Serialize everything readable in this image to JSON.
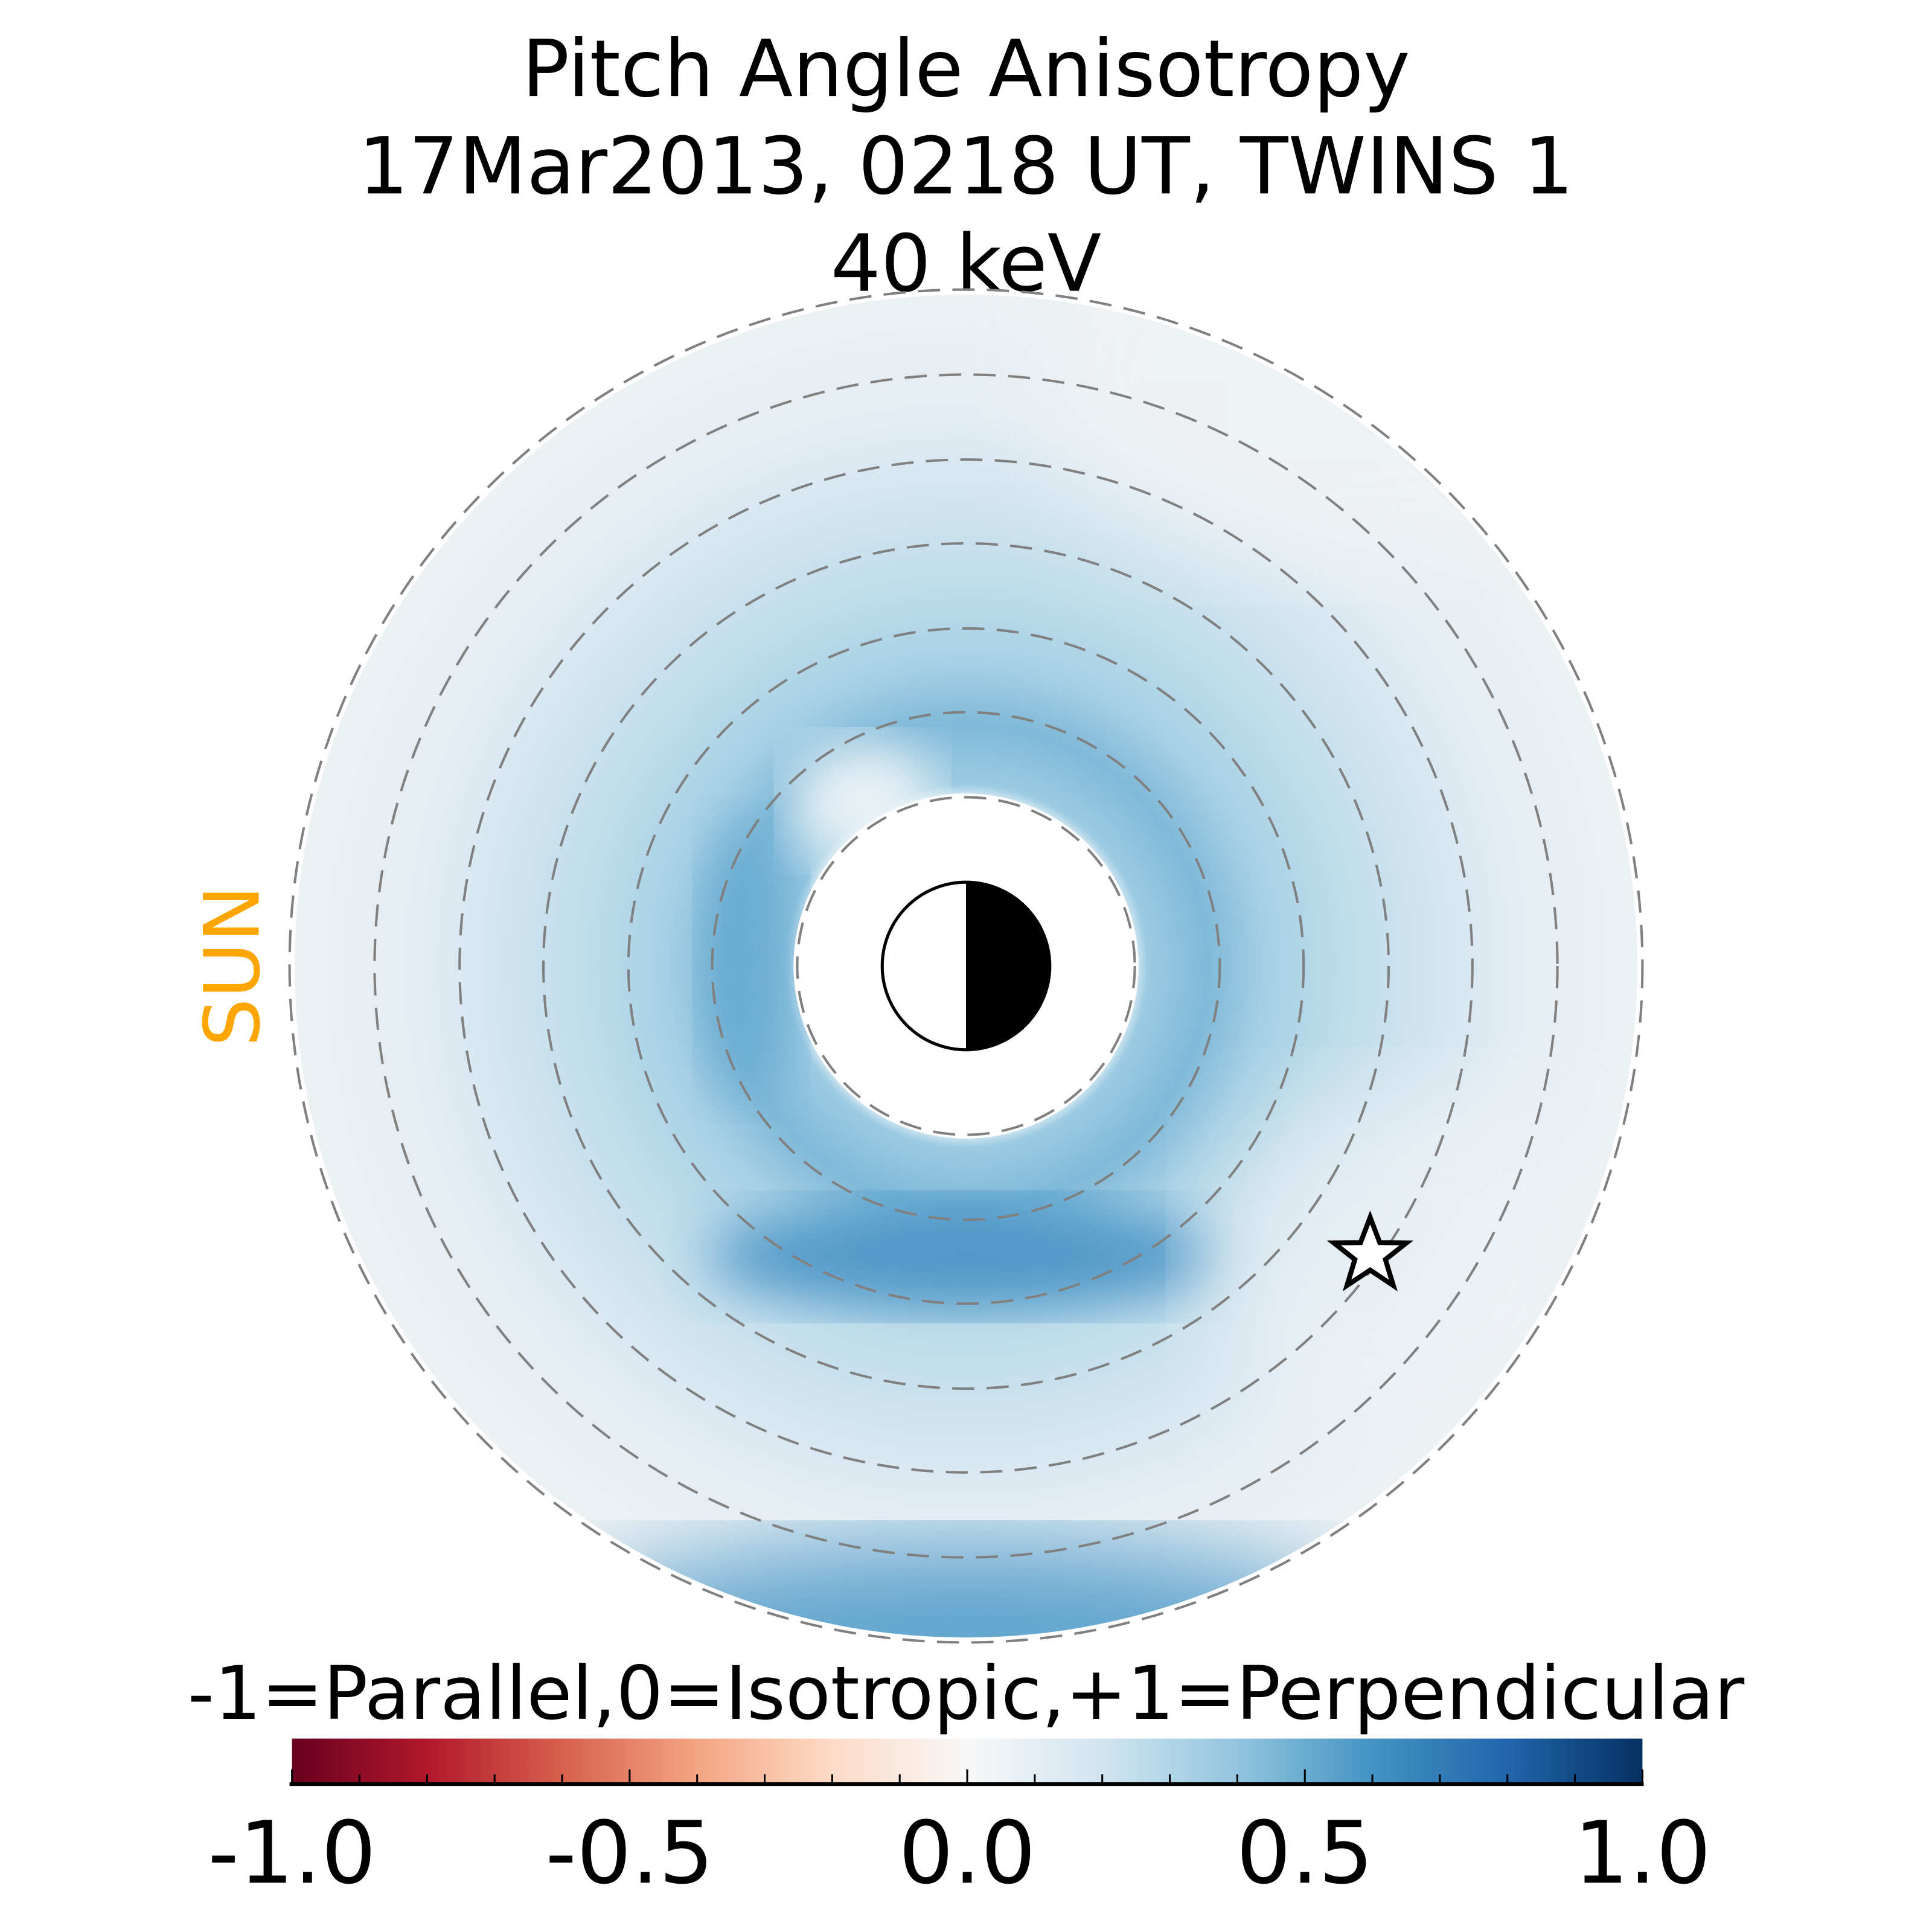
{
  "chart_data": {
    "type": "heatmap",
    "title": [
      "Pitch Angle Anisotropy",
      "17Mar2013, 0218 UT,  TWINS 1",
      "40 keV"
    ],
    "sun_label": "SUN",
    "colorbar": {
      "label": "-1=Parallel,0=Isotropic,+1=Perpendicular",
      "range": [
        -1.0,
        1.0
      ],
      "ticks": [
        -1.0,
        -0.5,
        0.0,
        0.5,
        1.0
      ],
      "tick_labels": [
        "-1.0",
        "-0.5",
        "0.0",
        "0.5",
        "1.0"
      ],
      "minor_step": 0.1,
      "colormap": [
        "#67001f",
        "#b2182b",
        "#d6604d",
        "#f4a582",
        "#fddbc7",
        "#f7f7f7",
        "#d1e5f0",
        "#92c5de",
        "#4393c3",
        "#2166ac",
        "#053061"
      ]
    },
    "field": {
      "description_values": "anisotropy mostly 0.1 to 0.6 (perpendicular), strongest ~0.6 south of Earth",
      "typical_min": 0.05,
      "typical_max": 0.6
    },
    "colors": {
      "sun": "#FFA500",
      "grid": "#808080"
    }
  }
}
